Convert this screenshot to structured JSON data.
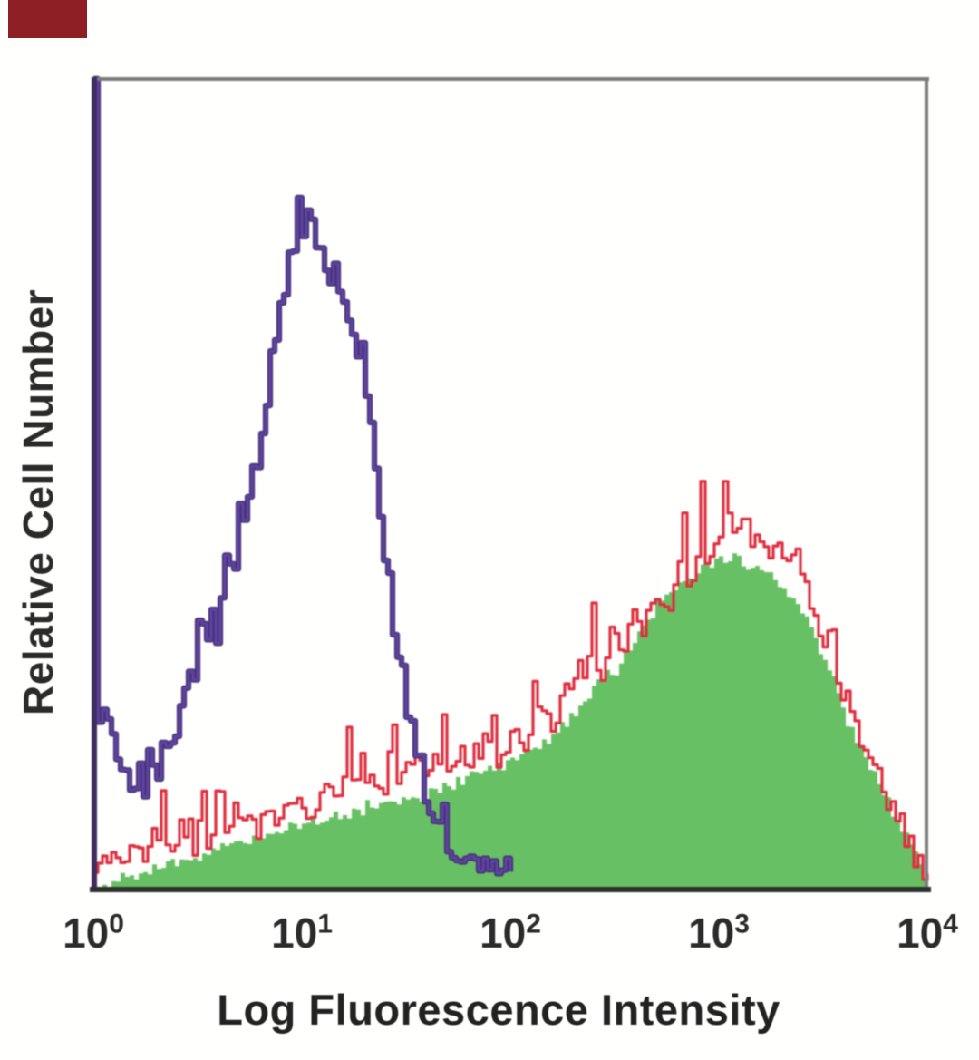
{
  "page": {
    "background": "#fffffe"
  },
  "corner_swatch": {
    "color": "#8e2025"
  },
  "chart_data": {
    "type": "area",
    "variant": "flow-cytometry-histogram-overlay",
    "title": "",
    "xlabel": "Log Fluorescence Intensity",
    "ylabel": "Relative Cell Number",
    "x_scale": "log10",
    "xlim": [
      1,
      10000
    ],
    "ylim_pct": [
      0,
      100
    ],
    "grid": false,
    "legend": "none",
    "x_ticks": [
      {
        "base": "10",
        "exp": "0",
        "u": 0
      },
      {
        "base": "10",
        "exp": "1",
        "u": 1
      },
      {
        "base": "10",
        "exp": "2",
        "u": 2
      },
      {
        "base": "10",
        "exp": "3",
        "u": 3
      },
      {
        "base": "10",
        "exp": "4",
        "u": 4
      }
    ],
    "frame_colors": {
      "top": "#7c7c7c",
      "right": "#7c7c7c",
      "bottom": "#2c312c",
      "left": "#3e2d5f"
    },
    "series": [
      {
        "name": "negative-control-purple-outline",
        "role": "outline",
        "color": "#5f43a2",
        "edge_color": "#453073",
        "stroke_width": 3,
        "edge_stroke_width": 6.2,
        "hmax": 99.8,
        "jitter": {
          "amp": 1.8,
          "spike_p": 0.15,
          "spike_amp": 4.5
        },
        "points": [
          [
            0,
            100
          ],
          [
            0.01,
            20
          ],
          [
            0.05,
            20.7
          ],
          [
            0.1,
            18.4
          ],
          [
            0.14,
            14.5
          ],
          [
            0.18,
            12.3
          ],
          [
            0.21,
            15.1
          ],
          [
            0.24,
            11.4
          ],
          [
            0.28,
            13.4
          ],
          [
            0.33,
            16.5
          ],
          [
            0.37,
            18.8
          ],
          [
            0.41,
            22.1
          ],
          [
            0.46,
            25.9
          ],
          [
            0.48,
            24.4
          ],
          [
            0.52,
            31.1
          ],
          [
            0.56,
            33.3
          ],
          [
            0.59,
            30.6
          ],
          [
            0.63,
            40
          ],
          [
            0.66,
            37.8
          ],
          [
            0.7,
            46.7
          ],
          [
            0.72,
            43.9
          ],
          [
            0.76,
            53.4
          ],
          [
            0.79,
            51.2
          ],
          [
            0.81,
            58.4
          ],
          [
            0.84,
            61.5
          ],
          [
            0.86,
            65.7
          ],
          [
            0.88,
            70.2
          ],
          [
            0.9,
            75.8
          ],
          [
            0.91,
            72.4
          ],
          [
            0.935,
            78
          ],
          [
            0.95,
            74.6
          ],
          [
            0.97,
            87.7
          ],
          [
            0.99,
            85.8
          ],
          [
            1.0,
            80.2
          ],
          [
            1.02,
            82.5
          ],
          [
            1.035,
            76.9
          ],
          [
            1.06,
            79.7
          ],
          [
            1.08,
            75.8
          ],
          [
            1.1,
            78
          ],
          [
            1.12,
            72.4
          ],
          [
            1.14,
            74.6
          ],
          [
            1.165,
            76.9
          ],
          [
            1.19,
            71.3
          ],
          [
            1.2,
            75.8
          ],
          [
            1.23,
            66.8
          ],
          [
            1.25,
            69.1
          ],
          [
            1.27,
            62.3
          ],
          [
            1.3,
            60.1
          ],
          [
            1.32,
            55.6
          ],
          [
            1.33,
            57.9
          ],
          [
            1.35,
            51.2
          ],
          [
            1.37,
            46.7
          ],
          [
            1.39,
            42.2
          ],
          [
            1.41,
            37.8
          ],
          [
            1.435,
            32.2
          ],
          [
            1.46,
            28.8
          ],
          [
            1.49,
            24.4
          ],
          [
            1.51,
            21
          ],
          [
            1.54,
            17.7
          ],
          [
            1.57,
            14.3
          ],
          [
            1.6,
            10.9
          ],
          [
            1.64,
            8.7
          ],
          [
            1.68,
            7
          ],
          [
            1.73,
            4.8
          ],
          [
            1.77,
            3.7
          ],
          [
            1.82,
            3.1
          ],
          [
            1.88,
            2.6
          ],
          [
            1.93,
            1.7
          ],
          [
            1.98,
            0.6
          ],
          [
            2.02,
            0
          ]
        ]
      },
      {
        "name": "stained-sample-green-fill",
        "role": "filled",
        "color": "#68c065",
        "stroke_width": 0,
        "hmax": 99,
        "jitter": {
          "amp": 0.7,
          "spike_p": 0.05,
          "spike_amp": 1.5
        },
        "points": [
          [
            0,
            0
          ],
          [
            0.12,
            1.3
          ],
          [
            0.25,
            2.2
          ],
          [
            0.38,
            3.1
          ],
          [
            0.51,
            3.9
          ],
          [
            0.64,
            5.3
          ],
          [
            0.77,
            6
          ],
          [
            0.9,
            7.2
          ],
          [
            1.03,
            8.3
          ],
          [
            1.16,
            8.9
          ],
          [
            1.29,
            9.7
          ],
          [
            1.42,
            10.4
          ],
          [
            1.55,
            11.2
          ],
          [
            1.68,
            12.5
          ],
          [
            1.81,
            13.9
          ],
          [
            1.94,
            15
          ],
          [
            2.05,
            16.1
          ],
          [
            2.16,
            17.9
          ],
          [
            2.25,
            20.1
          ],
          [
            2.33,
            22.6
          ],
          [
            2.4,
            25.1
          ],
          [
            2.46,
            27.3
          ],
          [
            2.51,
            26.6
          ],
          [
            2.56,
            29.3
          ],
          [
            2.62,
            31.5
          ],
          [
            2.67,
            33.1
          ],
          [
            2.73,
            35.5
          ],
          [
            2.78,
            36.6
          ],
          [
            2.83,
            37.5
          ],
          [
            2.89,
            38.9
          ],
          [
            2.94,
            40
          ],
          [
            3.0,
            40.7
          ],
          [
            3.03,
            39.6
          ],
          [
            3.07,
            40.9
          ],
          [
            3.12,
            40.2
          ],
          [
            3.16,
            38.9
          ],
          [
            3.21,
            39.6
          ],
          [
            3.26,
            37.8
          ],
          [
            3.3,
            36.6
          ],
          [
            3.34,
            35.5
          ],
          [
            3.39,
            34.4
          ],
          [
            3.43,
            32.2
          ],
          [
            3.47,
            29.9
          ],
          [
            3.52,
            27.7
          ],
          [
            3.56,
            24.4
          ],
          [
            3.6,
            21
          ],
          [
            3.65,
            18.8
          ],
          [
            3.69,
            16.5
          ],
          [
            3.73,
            14.3
          ],
          [
            3.78,
            12.1
          ],
          [
            3.82,
            9.8
          ],
          [
            3.87,
            7.6
          ],
          [
            3.91,
            5.4
          ],
          [
            3.95,
            3.1
          ],
          [
            3.99,
            0.9
          ],
          [
            4,
            0.2
          ]
        ]
      },
      {
        "name": "stained-sample-red-outline",
        "role": "outline",
        "color": "#de2f40",
        "stroke_width": 3.2,
        "hmax": 51,
        "jitter": {
          "amp": 1.5,
          "spike_p": 0.22,
          "spike_amp": 8
        },
        "points": [
          [
            0,
            2
          ],
          [
            0.05,
            3.6
          ],
          [
            0.12,
            2.8
          ],
          [
            0.18,
            4.7
          ],
          [
            0.25,
            3.4
          ],
          [
            0.31,
            5.4
          ],
          [
            0.38,
            4.2
          ],
          [
            0.44,
            6.1
          ],
          [
            0.51,
            5
          ],
          [
            0.57,
            7.6
          ],
          [
            0.64,
            5.8
          ],
          [
            0.7,
            8.7
          ],
          [
            0.77,
            6.9
          ],
          [
            0.83,
            9.8
          ],
          [
            0.9,
            8
          ],
          [
            0.96,
            11.4
          ],
          [
            1.03,
            9.2
          ],
          [
            1.1,
            13.2
          ],
          [
            1.16,
            10.3
          ],
          [
            1.23,
            14.3
          ],
          [
            1.29,
            11.4
          ],
          [
            1.36,
            13.6
          ],
          [
            1.42,
            12.1
          ],
          [
            1.49,
            15.4
          ],
          [
            1.55,
            12.5
          ],
          [
            1.62,
            15.9
          ],
          [
            1.68,
            13.6
          ],
          [
            1.75,
            17
          ],
          [
            1.81,
            14.7
          ],
          [
            1.88,
            18.1
          ],
          [
            1.94,
            15.9
          ],
          [
            2.01,
            19.2
          ],
          [
            2.07,
            17.7
          ],
          [
            2.14,
            21.5
          ],
          [
            2.2,
            19.9
          ],
          [
            2.26,
            24.8
          ],
          [
            2.31,
            23.2
          ],
          [
            2.37,
            28.8
          ],
          [
            2.43,
            26.6
          ],
          [
            2.48,
            31.1
          ],
          [
            2.53,
            28.8
          ],
          [
            2.59,
            34.4
          ],
          [
            2.64,
            32.2
          ],
          [
            2.69,
            36.6
          ],
          [
            2.75,
            34.4
          ],
          [
            2.8,
            40
          ],
          [
            2.86,
            37.1
          ],
          [
            2.91,
            42.2
          ],
          [
            2.96,
            39.3
          ],
          [
            3.02,
            45.6
          ],
          [
            3.05,
            47.8
          ],
          [
            3.08,
            42.7
          ],
          [
            3.12,
            46
          ],
          [
            3.15,
            41.6
          ],
          [
            3.19,
            44.5
          ],
          [
            3.23,
            40.4
          ],
          [
            3.27,
            43.4
          ],
          [
            3.31,
            38.9
          ],
          [
            3.36,
            41.6
          ],
          [
            3.4,
            37.1
          ],
          [
            3.44,
            34.9
          ],
          [
            3.49,
            31.1
          ],
          [
            3.53,
            28.8
          ],
          [
            3.57,
            24.8
          ],
          [
            3.62,
            21.5
          ],
          [
            3.66,
            19.2
          ],
          [
            3.7,
            16.5
          ],
          [
            3.75,
            14.3
          ],
          [
            3.79,
            12.1
          ],
          [
            3.83,
            9.5
          ],
          [
            3.88,
            7.3
          ],
          [
            3.92,
            4.7
          ],
          [
            3.97,
            2.5
          ],
          [
            4,
            0.9
          ]
        ]
      }
    ]
  }
}
